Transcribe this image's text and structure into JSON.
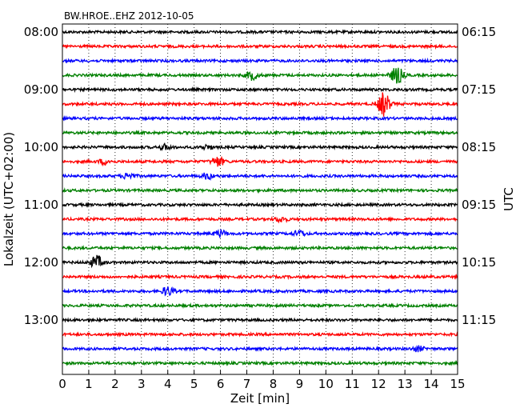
{
  "chart_data": {
    "type": "line",
    "title": "BW.HROE..EHZ 2012-10-05",
    "xlabel": "Zeit  [min]",
    "ylabel_left": "Lokalzeit (UTC+02:00)",
    "ylabel_right": "UTC",
    "xlim": [
      0,
      15
    ],
    "x_ticks": [
      "0",
      "1",
      "2",
      "3",
      "4",
      "5",
      "6",
      "7",
      "8",
      "9",
      "10",
      "11",
      "12",
      "13",
      "14",
      "15"
    ],
    "grid_x": "dotted",
    "trace_interval_min": 15,
    "trace_count": 24,
    "trace_colors": [
      "#000000",
      "#ff0000",
      "#0000ff",
      "#008000"
    ],
    "left_tick_labels": [
      "08:00",
      "09:00",
      "10:00",
      "11:00",
      "12:00",
      "13:00"
    ],
    "right_tick_labels": [
      "06:15",
      "07:15",
      "08:15",
      "09:15",
      "10:15",
      "11:15"
    ],
    "label_every_n_traces": 4,
    "events": [
      {
        "trace": 3,
        "minute": 7.2,
        "amplitude": 0.9
      },
      {
        "trace": 3,
        "minute": 12.7,
        "amplitude": 1.8
      },
      {
        "trace": 5,
        "minute": 12.2,
        "amplitude": 2.4
      },
      {
        "trace": 8,
        "minute": 3.9,
        "amplitude": 0.5
      },
      {
        "trace": 8,
        "minute": 5.5,
        "amplitude": 0.4
      },
      {
        "trace": 9,
        "minute": 1.6,
        "amplitude": 0.5
      },
      {
        "trace": 9,
        "minute": 5.9,
        "amplitude": 1.0
      },
      {
        "trace": 10,
        "minute": 2.5,
        "amplitude": 0.6
      },
      {
        "trace": 10,
        "minute": 5.5,
        "amplitude": 0.6
      },
      {
        "trace": 13,
        "minute": 8.3,
        "amplitude": 0.5
      },
      {
        "trace": 14,
        "minute": 6.0,
        "amplitude": 0.7
      },
      {
        "trace": 14,
        "minute": 9.0,
        "amplitude": 0.6
      },
      {
        "trace": 16,
        "minute": 1.3,
        "amplitude": 1.3
      },
      {
        "trace": 18,
        "minute": 4.0,
        "amplitude": 0.9
      },
      {
        "trace": 22,
        "minute": 13.5,
        "amplitude": 0.5
      }
    ]
  }
}
